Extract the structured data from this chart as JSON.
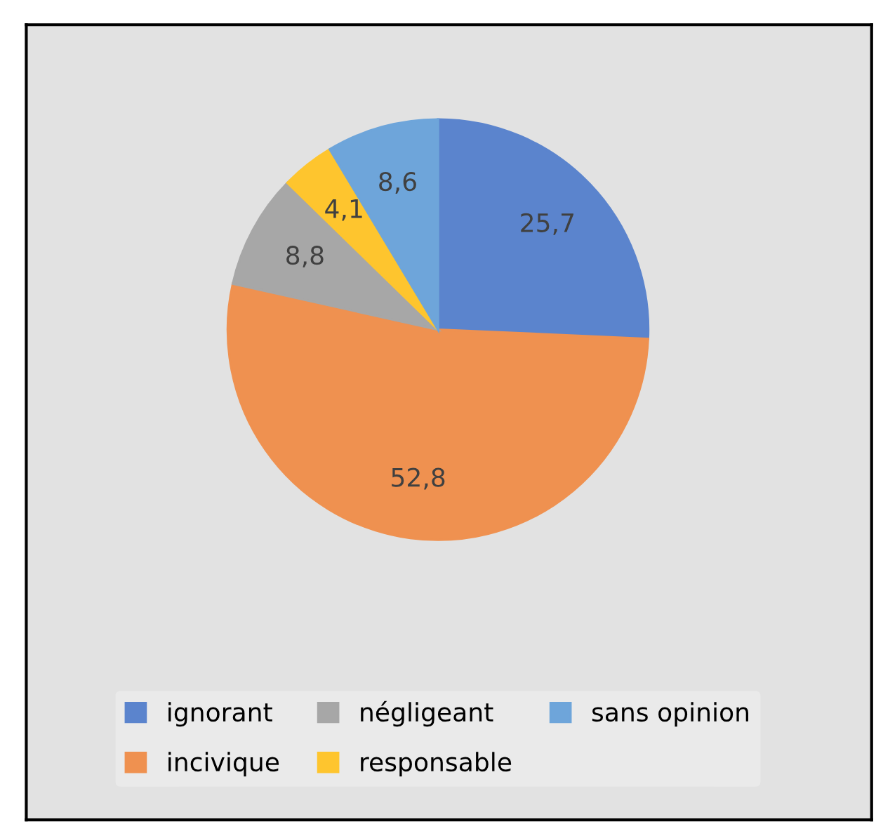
{
  "chart_data": {
    "type": "pie",
    "categories": [
      "ignorant",
      "incivique",
      "négligeant",
      "responsable",
      "sans opinion"
    ],
    "values": [
      25.7,
      52.8,
      8.8,
      4.1,
      8.6
    ],
    "value_labels": [
      "25,7",
      "52,8",
      "8,8",
      "4,1",
      "8,6"
    ],
    "colors": [
      "#5b84cd",
      "#ef9150",
      "#a7a7a7",
      "#fec52e",
      "#6ea5da"
    ],
    "legend": "bottom"
  }
}
